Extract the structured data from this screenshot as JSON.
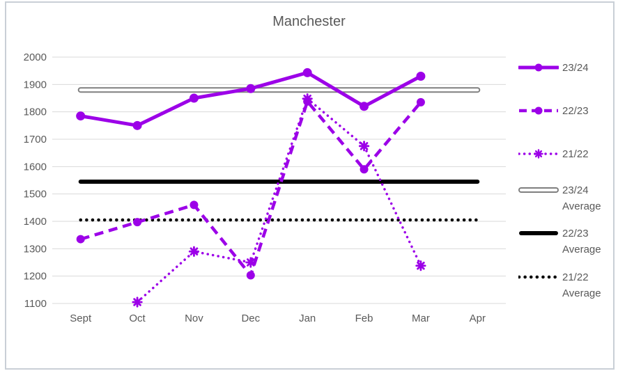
{
  "chart_data": {
    "type": "line",
    "title": "Manchester",
    "categories": [
      "Sept",
      "Oct",
      "Nov",
      "Dec",
      "Jan",
      "Feb",
      "Mar",
      "Apr"
    ],
    "y_ticks": [
      2000,
      1900,
      1800,
      1700,
      1600,
      1500,
      1400,
      1300,
      1200,
      1100
    ],
    "ylim": [
      1100,
      2000
    ],
    "grid": true,
    "legend_position": "right",
    "axis_label_color": "#595959",
    "gridline_color": "#D9D9D9",
    "series": [
      {
        "name": "23/24",
        "color": "#9C00E8",
        "style": "solid",
        "marker": "circle",
        "values": [
          1785,
          1750,
          1850,
          1885,
          1943,
          1820,
          1930,
          null
        ]
      },
      {
        "name": "22/23",
        "color": "#9C00E8",
        "style": "dashed",
        "marker": "circle",
        "values": [
          1335,
          1397,
          1460,
          1203,
          1838,
          1590,
          1835,
          null
        ]
      },
      {
        "name": "21/22",
        "color": "#9C00E8",
        "style": "dotted",
        "marker": "star",
        "values": [
          null,
          1105,
          1290,
          1250,
          1848,
          1675,
          1238,
          null
        ]
      },
      {
        "name": "23/24 Average",
        "color": "#7F7F7F",
        "style": "double",
        "marker": "none",
        "values": [
          1880,
          1880,
          1880,
          1880,
          1880,
          1880,
          1880,
          1880
        ]
      },
      {
        "name": "22/23 Average",
        "color": "#000000",
        "style": "thick",
        "marker": "none",
        "values": [
          1545,
          1545,
          1545,
          1545,
          1545,
          1545,
          1545,
          1545
        ]
      },
      {
        "name": "21/22 Average",
        "color": "#000000",
        "style": "dotted-avg",
        "marker": "none",
        "values": [
          1405,
          1405,
          1405,
          1405,
          1405,
          1405,
          1405,
          1405
        ]
      }
    ]
  }
}
